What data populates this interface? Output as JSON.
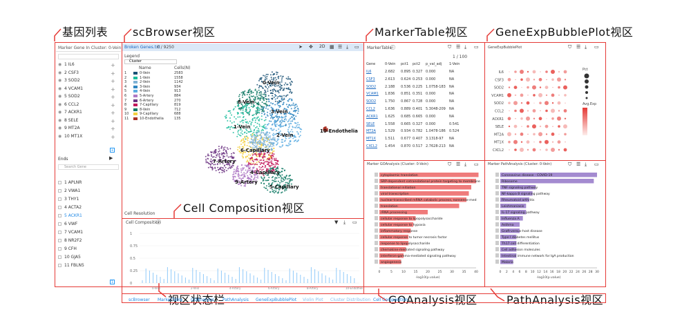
{
  "callouts": {
    "gene_list": "基因列表",
    "scbrowser": "scBrowser视区",
    "markertable": "MarkerTable视区",
    "bubbleplot": "GeneExpBubblePlot视区",
    "cellcomp": "Cell Composition视区",
    "statusbar": "视区状态栏",
    "goanalysis": "GOAnalysis视区",
    "pathanalysis": "PathAnalysis视区"
  },
  "genelist": {
    "header": "Marker Gene In Cluster: 0-Vein",
    "items": [
      "1 IL6",
      "2 CSF3",
      "3 SOD2",
      "4 VCAM1",
      "5 SOD2",
      "6 CCL2",
      "7 ACKR1",
      "8 SELE",
      "9 MT2A",
      "10 MT1X"
    ],
    "ends_label": "Ends",
    "search_placeholder": "Search Gene",
    "items2": [
      "1 APLNR",
      "2 VWA1",
      "3 THY1",
      "4 ACTA2",
      "5 ACKR1",
      "6 VWF",
      "7 VCAM1",
      "8 NR2F2",
      "9 CFH",
      "10 GJA5",
      "11 FBLN5"
    ]
  },
  "scbrowser": {
    "title": "Broken Genes.txt",
    "count": "0 / 9250",
    "legend_label": "Legend",
    "cluster_select": "Cluster",
    "col_name": "Name",
    "col_cells": "Cells(N)",
    "clusters": [
      {
        "n": "1",
        "name": "0-Vein",
        "cells": "2583",
        "color": "#1a5276"
      },
      {
        "n": "2",
        "name": "1-Vein",
        "cells": "1558",
        "color": "#1abc9c"
      },
      {
        "n": "3",
        "name": "2-Vein",
        "cells": "1142",
        "color": "#7fb3d5"
      },
      {
        "n": "4",
        "name": "3-Vein",
        "cells": "934",
        "color": "#2e86c1"
      },
      {
        "n": "5",
        "name": "4-Vein",
        "cells": "913",
        "color": "#5dade2"
      },
      {
        "n": "6",
        "name": "5-Artery",
        "cells": "884",
        "color": "#af7ac5"
      },
      {
        "n": "7",
        "name": "6-Artery",
        "cells": "270",
        "color": "#6c3483"
      },
      {
        "n": "8",
        "name": "7-Capillary",
        "cells": "819",
        "color": "#c2185b"
      },
      {
        "n": "9",
        "name": "8-Vein",
        "cells": "712",
        "color": "#117a65"
      },
      {
        "n": "10",
        "name": "9-Capillary",
        "cells": "688",
        "color": "#f4d03f"
      },
      {
        "n": "11",
        "name": "10-Endothelia",
        "cells": "135",
        "color": "#a93226"
      }
    ],
    "umap_labels": [
      "0-Vein",
      "8-Vein",
      "3-Vein",
      "1-Vein",
      "2-Vein",
      "6-Capillary",
      "7-Artery",
      "4-Capillary",
      "9-Artery",
      "5-Capillary",
      "10-Endothelia"
    ],
    "resolution_label": "Cell Resolution"
  },
  "cellcomp": {
    "title": "Cell Composition",
    "ticks": [
      "1",
      "0.75",
      "0.5",
      "0.25",
      "0"
    ],
    "xcats": [
      "0-Vein",
      "2-Vein",
      "4-Artery",
      "6-Artery",
      "8-Artery",
      "10-Endothelia"
    ]
  },
  "markertable": {
    "title": "MarkerTable",
    "search": "",
    "page": "1 / 100",
    "cols": [
      "Gene",
      "0-Vein",
      "pct1",
      "pct2",
      "p_val_adj",
      "1-Vein"
    ],
    "rows": [
      [
        "IL6",
        "2.682",
        "0.895",
        "0.327",
        "0.000",
        "NA"
      ],
      [
        "CSF3",
        "2.613",
        "0.624",
        "0.253",
        "0.000",
        "NA"
      ],
      [
        "SOD2",
        "2.188",
        "0.536",
        "0.225",
        "1.0758-183",
        "NA"
      ],
      [
        "VCAM1",
        "1.836",
        "0.851",
        "0.351",
        "0.000",
        "NA"
      ],
      [
        "SOD2",
        "1.750",
        "0.867",
        "0.728",
        "0.000",
        "NA"
      ],
      [
        "CCL2",
        "1.636",
        "0.889",
        "0.401",
        "5.3048-209",
        "NA"
      ],
      [
        "ACKR1",
        "1.625",
        "0.685",
        "0.665",
        "0.000",
        "NA"
      ],
      [
        "SELE",
        "1.558",
        "0.665",
        "0.327",
        "0.000",
        "0.541"
      ],
      [
        "MT2A",
        "1.529",
        "0.934",
        "0.782",
        "1.0478-186",
        "0.524"
      ],
      [
        "MT1X",
        "1.511",
        "0.677",
        "0.407",
        "3.1318-97",
        "NA"
      ],
      [
        "CXCL2",
        "1.454",
        "0.870",
        "0.517",
        "2.7628-213",
        "NA"
      ]
    ]
  },
  "bubble": {
    "title": "GeneExpBubblePlot",
    "genes": [
      "IL6",
      "CSF3",
      "SOD2",
      "VCAM1",
      "SOD2",
      "CCL2",
      "ACKR1",
      "SELE",
      "MT2A",
      "MT1X",
      "CXCL2"
    ],
    "pct_label": "Pct",
    "avg_label": "Avg.Exp"
  },
  "go": {
    "title": "Marker GOAnalysis (Cluster: 0-Vein)",
    "terms": [
      "cytoplasmic translation",
      "SRP-dependent cotranslational protein targeting to membrane",
      "translational initiation",
      "viral transcription",
      "nuclear-transcribed mRNA catabolic process, nonsense-med",
      "translation",
      "rRNA processing",
      "cellular response to lipopolysaccharide",
      "cellular response to hypoxia",
      "inflammatory response",
      "cellular response to tumor necrosis factor",
      "response to lipopolysaccharide",
      "chemokine-mediated signaling pathway",
      "interferon-gamma-mediated signaling pathway",
      "angiogenesis"
    ],
    "values": [
      41,
      40,
      38,
      37,
      36,
      33,
      20,
      15,
      14,
      13,
      12,
      12,
      11,
      10,
      9
    ],
    "xticks": [
      "0",
      "5",
      "10",
      "15",
      "20",
      "25",
      "30",
      "35",
      "40"
    ],
    "xlabel": "-log10(p.value)"
  },
  "path": {
    "title": "Marker PathAnalysis (Cluster: 0-Vein)",
    "terms": [
      "Coronavirus disease - COVID-19",
      "Ribosome",
      "TNF signaling pathway",
      "NF-kappa B signaling pathway",
      "Rheumatoid arthritis",
      "Leishmaniasis",
      "IL-17 signaling pathway",
      "Influenza A",
      "Asthma",
      "Graft-versus-host disease",
      "Type I diabetes mellitus",
      "Th17 cell differentiation",
      "Cell adhesion molecules",
      "Intestinal immune network for IgA production",
      "Malaria"
    ],
    "values": [
      30,
      29,
      11,
      10,
      9,
      8,
      8,
      7,
      6,
      6,
      5,
      5,
      5,
      5,
      4
    ],
    "xticks": [
      "0",
      "2",
      "4",
      "6",
      "8",
      "10",
      "12",
      "14",
      "16",
      "18",
      "20",
      "22",
      "24",
      "26",
      "28",
      "30"
    ],
    "xlabel": "-log10(p.value)"
  },
  "statusbar": {
    "tabs": [
      "scBrowser",
      "MarkerTable",
      "GOAnalysis",
      "PathAnalysis",
      "GeneExpBubblePlot",
      "Violin Plot",
      "Cluster Distribution",
      "Cell Composition"
    ]
  },
  "colors": {
    "frame": "#e53935",
    "go_bar": "#ef7b7b",
    "path_bar": "#a48bd0",
    "tab_active": "#1e88e5"
  }
}
